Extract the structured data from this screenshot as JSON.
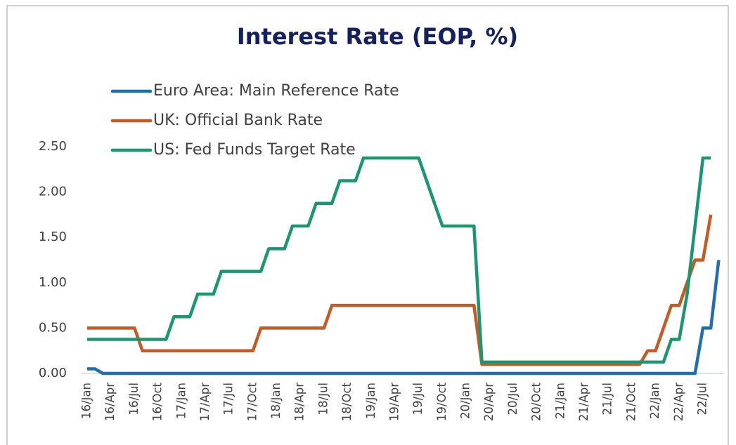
{
  "chart_data": {
    "type": "line",
    "title": "Interest Rate (EOP, %)",
    "categories": [
      "16/Jan",
      null,
      null,
      "16/Apr",
      null,
      null,
      "16/Jul",
      null,
      null,
      "16/Oct",
      null,
      null,
      "17/Jan",
      null,
      null,
      "17/Apr",
      null,
      null,
      "17/Jul",
      null,
      null,
      "17/Oct",
      null,
      null,
      "18/Jan",
      null,
      null,
      "18/Apr",
      null,
      null,
      "18/Jul",
      null,
      null,
      "18/Oct",
      null,
      null,
      "19/Jan",
      null,
      null,
      "19/Apr",
      null,
      null,
      "19/Jul",
      null,
      null,
      "19/Oct",
      null,
      null,
      "20/Jan",
      null,
      null,
      "20/Apr",
      null,
      null,
      "20/Jul",
      null,
      null,
      "20/Oct",
      null,
      null,
      "21/Jan",
      null,
      null,
      "21/Apr",
      null,
      null,
      "21/Jul",
      null,
      null,
      "21/Oct",
      null,
      null,
      "22/Jan",
      null,
      null,
      "22/Apr",
      null,
      null,
      "22/Jul",
      null,
      null
    ],
    "series": [
      {
        "name": "Euro Area: Main Reference Rate",
        "color": "#1f6fae",
        "values": [
          0.05,
          0.05,
          0,
          0,
          0,
          0,
          0,
          0,
          0,
          0,
          0,
          0,
          0,
          0,
          0,
          0,
          0,
          0,
          0,
          0,
          0,
          0,
          0,
          0,
          0,
          0,
          0,
          0,
          0,
          0,
          0,
          0,
          0,
          0,
          0,
          0,
          0,
          0,
          0,
          0,
          0,
          0,
          0,
          0,
          0,
          0,
          0,
          0,
          0,
          0,
          0,
          0,
          0,
          0,
          0,
          0,
          0,
          0,
          0,
          0,
          0,
          0,
          0,
          0,
          0,
          0,
          0,
          0,
          0,
          0,
          0,
          0,
          0,
          0,
          0,
          0,
          0,
          0,
          0.5,
          0.5,
          1.25
        ]
      },
      {
        "name": "UK: Official Bank Rate",
        "color": "#c55a24",
        "values": [
          0.5,
          0.5,
          0.5,
          0.5,
          0.5,
          0.5,
          0.5,
          0.25,
          0.25,
          0.25,
          0.25,
          0.25,
          0.25,
          0.25,
          0.25,
          0.25,
          0.25,
          0.25,
          0.25,
          0.25,
          0.25,
          0.25,
          0.5,
          0.5,
          0.5,
          0.5,
          0.5,
          0.5,
          0.5,
          0.5,
          0.5,
          0.75,
          0.75,
          0.75,
          0.75,
          0.75,
          0.75,
          0.75,
          0.75,
          0.75,
          0.75,
          0.75,
          0.75,
          0.75,
          0.75,
          0.75,
          0.75,
          0.75,
          0.75,
          0.75,
          0.1,
          0.1,
          0.1,
          0.1,
          0.1,
          0.1,
          0.1,
          0.1,
          0.1,
          0.1,
          0.1,
          0.1,
          0.1,
          0.1,
          0.1,
          0.1,
          0.1,
          0.1,
          0.1,
          0.1,
          0.1,
          0.25,
          0.25,
          0.5,
          0.75,
          0.75,
          1.0,
          1.25,
          1.25,
          1.75,
          null
        ]
      },
      {
        "name": "US: Fed Funds Target Rate",
        "color": "#1a9770",
        "values": [
          0.375,
          0.375,
          0.375,
          0.375,
          0.375,
          0.375,
          0.375,
          0.375,
          0.375,
          0.375,
          0.375,
          0.625,
          0.625,
          0.625,
          0.875,
          0.875,
          0.875,
          1.125,
          1.125,
          1.125,
          1.125,
          1.125,
          1.125,
          1.375,
          1.375,
          1.375,
          1.625,
          1.625,
          1.625,
          1.875,
          1.875,
          1.875,
          2.125,
          2.125,
          2.125,
          2.375,
          2.375,
          2.375,
          2.375,
          2.375,
          2.375,
          2.375,
          2.375,
          2.125,
          1.875,
          1.625,
          1.625,
          1.625,
          1.625,
          1.625,
          0.125,
          0.125,
          0.125,
          0.125,
          0.125,
          0.125,
          0.125,
          0.125,
          0.125,
          0.125,
          0.125,
          0.125,
          0.125,
          0.125,
          0.125,
          0.125,
          0.125,
          0.125,
          0.125,
          0.125,
          0.125,
          0.125,
          0.125,
          0.125,
          0.375,
          0.375,
          0.875,
          1.625,
          2.375,
          2.375,
          null
        ]
      }
    ],
    "ylim": [
      0,
      2.5
    ],
    "yticks": [
      {
        "value": 0,
        "label": "0.00"
      },
      {
        "value": 0.5,
        "label": "0.50"
      },
      {
        "value": 1,
        "label": "1.00"
      },
      {
        "value": 1.5,
        "label": "1.50"
      },
      {
        "value": 2,
        "label": "2.00"
      },
      {
        "value": 2.5,
        "label": "2.50"
      }
    ],
    "legend": "upper left"
  }
}
